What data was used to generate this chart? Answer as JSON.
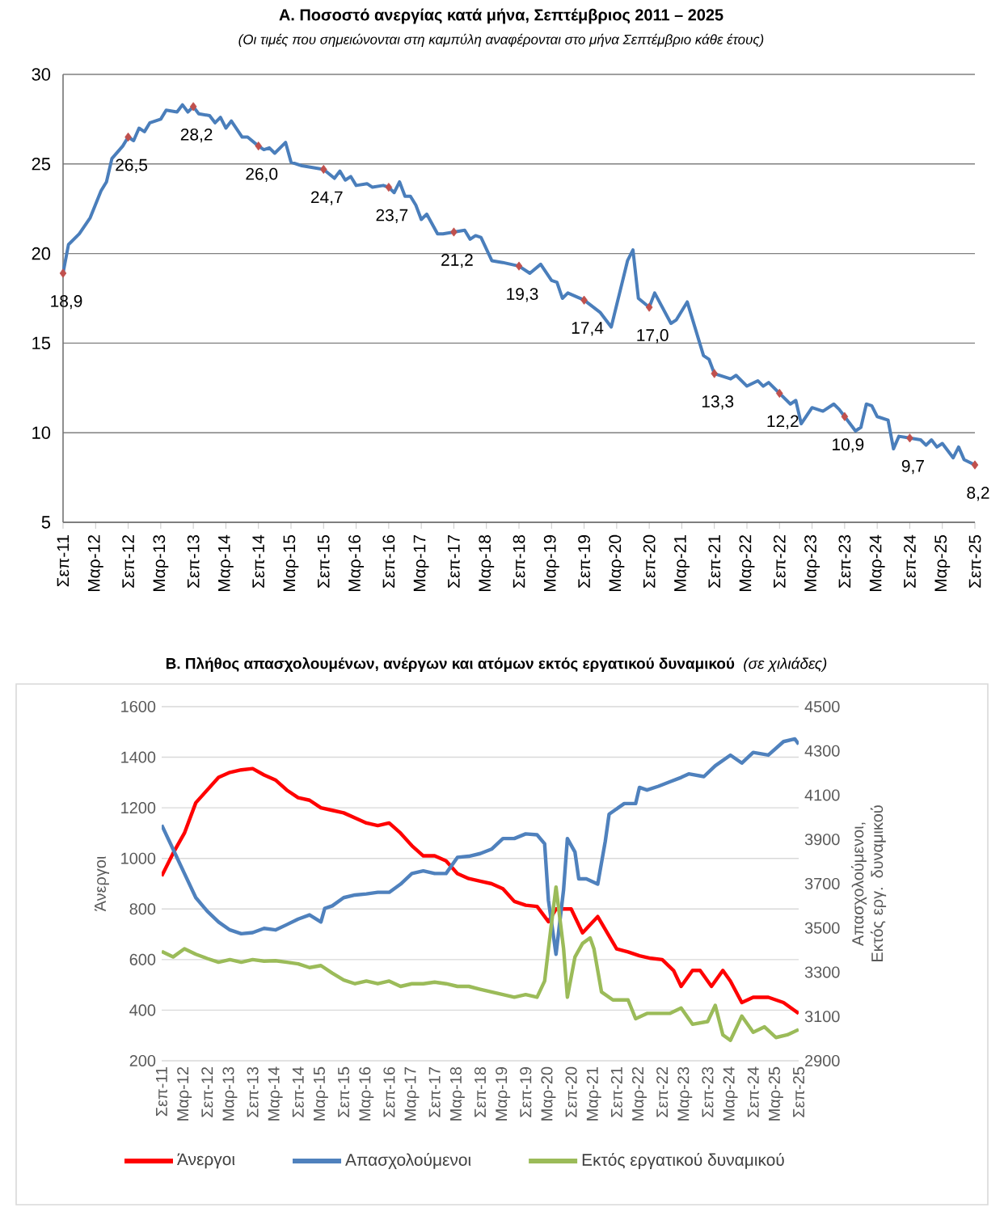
{
  "chart_data": [
    {
      "type": "line",
      "title": "Α. Ποσοστό ανεργίας κατά μήνα, Σεπτέμβριος 2011 – 2025",
      "subtitle": "(Οι τιμές που σημειώνονται στη καμπύλη αναφέρονται στο μήνα Σεπτέμβριο κάθε έτους)",
      "xlim": [
        "2011-09",
        "2025-09"
      ],
      "xticks": [
        {
          "value": "2011-09",
          "label": "Σεπ-11"
        },
        {
          "value": "2012-03",
          "label": "Μαρ-12"
        },
        {
          "value": "2012-09",
          "label": "Σεπ-12"
        },
        {
          "value": "2013-03",
          "label": "Μαρ-13"
        },
        {
          "value": "2013-09",
          "label": "Σεπ-13"
        },
        {
          "value": "2014-03",
          "label": "Μαρ-14"
        },
        {
          "value": "2014-09",
          "label": "Σεπ-14"
        },
        {
          "value": "2015-03",
          "label": "Μαρ-15"
        },
        {
          "value": "2015-09",
          "label": "Σεπ-15"
        },
        {
          "value": "2016-03",
          "label": "Μαρ-16"
        },
        {
          "value": "2016-09",
          "label": "Σεπ-16"
        },
        {
          "value": "2017-03",
          "label": "Μαρ-17"
        },
        {
          "value": "2017-09",
          "label": "Σεπ-17"
        },
        {
          "value": "2018-03",
          "label": "Μαρ-18"
        },
        {
          "value": "2018-09",
          "label": "Σεπ-18"
        },
        {
          "value": "2019-03",
          "label": "Μαρ-19"
        },
        {
          "value": "2019-09",
          "label": "Σεπ-19"
        },
        {
          "value": "2020-03",
          "label": "Μαρ-20"
        },
        {
          "value": "2020-09",
          "label": "Σεπ-20"
        },
        {
          "value": "2021-03",
          "label": "Μαρ-21"
        },
        {
          "value": "2021-09",
          "label": "Σεπ-21"
        },
        {
          "value": "2022-03",
          "label": "Μαρ-22"
        },
        {
          "value": "2022-09",
          "label": "Σεπ-22"
        },
        {
          "value": "2023-03",
          "label": "Μαρ-23"
        },
        {
          "value": "2023-09",
          "label": "Σεπ-23"
        },
        {
          "value": "2024-03",
          "label": "Μαρ-24"
        },
        {
          "value": "2024-09",
          "label": "Σεπ-24"
        },
        {
          "value": "2025-03",
          "label": "Μαρ-25"
        },
        {
          "value": "2025-09",
          "label": "Σεπ-25"
        }
      ],
      "ylim": [
        5,
        30
      ],
      "yticks": [
        5,
        10,
        15,
        20,
        25,
        30
      ],
      "grid": "y",
      "series": [
        {
          "color": "#4a7ebb",
          "x": [
            "2011-09",
            "2011-10",
            "2011-12",
            "2012-02",
            "2012-04",
            "2012-05",
            "2012-06",
            "2012-08",
            "2012-09",
            "2012-10",
            "2012-11",
            "2012-12",
            "2013-01",
            "2013-03",
            "2013-04",
            "2013-06",
            "2013-07",
            "2013-08",
            "2013-09",
            "2013-10",
            "2013-12",
            "2014-01",
            "2014-02",
            "2014-03",
            "2014-04",
            "2014-06",
            "2014-07",
            "2014-09",
            "2014-10",
            "2014-11",
            "2014-12",
            "2015-02",
            "2015-03",
            "2015-05",
            "2015-07",
            "2015-09",
            "2015-11",
            "2015-12",
            "2016-01",
            "2016-02",
            "2016-03",
            "2016-05",
            "2016-06",
            "2016-08",
            "2016-09",
            "2016-10",
            "2016-11",
            "2016-12",
            "2017-01",
            "2017-02",
            "2017-03",
            "2017-04",
            "2017-06",
            "2017-07",
            "2017-09",
            "2017-11",
            "2017-12",
            "2018-01",
            "2018-02",
            "2018-04",
            "2018-06",
            "2018-09",
            "2018-11",
            "2019-01",
            "2019-03",
            "2019-04",
            "2019-05",
            "2019-06",
            "2019-09",
            "2019-12",
            "2020-02",
            "2020-05",
            "2020-06",
            "2020-07",
            "2020-09",
            "2020-10",
            "2021-01",
            "2021-02",
            "2021-04",
            "2021-07",
            "2021-08",
            "2021-09",
            "2021-12",
            "2022-01",
            "2022-03",
            "2022-05",
            "2022-06",
            "2022-07",
            "2022-09",
            "2022-11",
            "2022-12",
            "2023-01",
            "2023-03",
            "2023-05",
            "2023-07",
            "2023-08",
            "2023-09",
            "2023-11",
            "2023-12",
            "2024-01",
            "2024-02",
            "2024-03",
            "2024-05",
            "2024-06",
            "2024-07",
            "2024-09",
            "2024-11",
            "2024-12",
            "2025-01",
            "2025-02",
            "2025-03",
            "2025-05",
            "2025-06",
            "2025-07",
            "2025-09"
          ],
          "values": [
            18.9,
            20.5,
            21.1,
            22.0,
            23.5,
            24.0,
            25.3,
            26.0,
            26.5,
            26.3,
            27.0,
            26.8,
            27.3,
            27.5,
            28.0,
            27.9,
            28.3,
            27.9,
            28.2,
            27.8,
            27.7,
            27.3,
            27.6,
            27.0,
            27.4,
            26.5,
            26.5,
            26.0,
            25.8,
            25.9,
            25.6,
            26.2,
            25.1,
            24.9,
            24.8,
            24.7,
            24.2,
            24.6,
            24.1,
            24.3,
            23.8,
            23.9,
            23.7,
            23.8,
            23.7,
            23.4,
            24.0,
            23.2,
            23.2,
            22.7,
            21.9,
            22.2,
            21.1,
            21.1,
            21.2,
            21.3,
            20.8,
            21.0,
            20.9,
            19.6,
            19.5,
            19.3,
            18.9,
            19.4,
            18.5,
            18.4,
            17.5,
            17.8,
            17.4,
            16.7,
            15.9,
            19.6,
            20.2,
            17.5,
            17.0,
            17.8,
            16.1,
            16.3,
            17.3,
            14.3,
            14.1,
            13.3,
            13.0,
            13.2,
            12.6,
            12.9,
            12.6,
            12.8,
            12.2,
            11.6,
            11.8,
            10.5,
            11.4,
            11.2,
            11.6,
            11.3,
            10.9,
            10.1,
            10.3,
            11.6,
            11.5,
            10.9,
            10.7,
            9.1,
            9.8,
            9.7,
            9.6,
            9.3,
            9.6,
            9.2,
            9.4,
            8.6,
            9.2,
            8.5,
            8.2
          ]
        },
        {
          "type": "scatter",
          "marker": "diamond",
          "color": "#c0504d",
          "x": [
            "2011-09",
            "2012-09",
            "2013-09",
            "2014-09",
            "2015-09",
            "2016-09",
            "2017-09",
            "2018-09",
            "2019-09",
            "2020-09",
            "2021-09",
            "2022-09",
            "2023-09",
            "2024-09",
            "2025-09"
          ],
          "values": [
            18.9,
            26.5,
            28.2,
            26.0,
            24.7,
            23.7,
            21.2,
            19.3,
            17.4,
            17.0,
            13.3,
            12.2,
            10.9,
            9.7,
            8.2
          ],
          "value_labels": [
            "18,9",
            "26,5",
            "28,2",
            "26,0",
            "24,7",
            "23,7",
            "21,2",
            "19,3",
            "17,4",
            "17,0",
            "13,3",
            "12,2",
            "10,9",
            "9,7",
            "8,2"
          ]
        }
      ]
    },
    {
      "type": "line",
      "title": "Β. Πλήθος απασχολουμένων, ανέργων και ατόμων εκτός εργατικού δυναμικού",
      "subtitle": "(σε χιλιάδες)",
      "ylabel": "Άνεργοι",
      "y2label": "Απασχολούμενοι, Εκτός εργ. δυναμικού",
      "xlim": [
        "2011-09",
        "2025-09"
      ],
      "xticks": [
        {
          "value": "2011-09",
          "label": "Σεπ-11"
        },
        {
          "value": "2012-03",
          "label": "Μαρ-12"
        },
        {
          "value": "2012-09",
          "label": "Σεπ-12"
        },
        {
          "value": "2013-03",
          "label": "Μαρ-13"
        },
        {
          "value": "2013-09",
          "label": "Σεπ-13"
        },
        {
          "value": "2014-03",
          "label": "Μαρ-14"
        },
        {
          "value": "2014-09",
          "label": "Σεπ-14"
        },
        {
          "value": "2015-03",
          "label": "Μαρ-15"
        },
        {
          "value": "2015-09",
          "label": "Σεπ-15"
        },
        {
          "value": "2016-03",
          "label": "Μαρ-16"
        },
        {
          "value": "2016-09",
          "label": "Σεπ-16"
        },
        {
          "value": "2017-03",
          "label": "Μαρ-17"
        },
        {
          "value": "2017-09",
          "label": "Σεπ-17"
        },
        {
          "value": "2018-03",
          "label": "Μαρ-18"
        },
        {
          "value": "2018-09",
          "label": "Σεπ-18"
        },
        {
          "value": "2019-03",
          "label": "Μαρ-19"
        },
        {
          "value": "2019-09",
          "label": "Σεπ-19"
        },
        {
          "value": "2020-03",
          "label": "Μαρ-20"
        },
        {
          "value": "2020-09",
          "label": "Σεπ-20"
        },
        {
          "value": "2021-03",
          "label": "Μαρ-21"
        },
        {
          "value": "2021-09",
          "label": "Σεπ-21"
        },
        {
          "value": "2022-03",
          "label": "Μαρ-22"
        },
        {
          "value": "2022-09",
          "label": "Σεπ-22"
        },
        {
          "value": "2023-03",
          "label": "Μαρ-23"
        },
        {
          "value": "2023-09",
          "label": "Σεπ-23"
        },
        {
          "value": "2024-03",
          "label": "Μαρ-24"
        },
        {
          "value": "2024-09",
          "label": "Σεπ-24"
        },
        {
          "value": "2025-03",
          "label": "Μαρ-25"
        },
        {
          "value": "2025-09",
          "label": "Σεπ-25"
        }
      ],
      "ylim": [
        200,
        1600
      ],
      "yticks": [
        200,
        400,
        600,
        800,
        1000,
        1200,
        1400,
        1600
      ],
      "y2lim": [
        2900,
        4500
      ],
      "y2ticks": [
        2900,
        3100,
        3300,
        3500,
        3700,
        3900,
        4100,
        4300,
        4500
      ],
      "grid": "y",
      "legend": "bottom",
      "series": [
        {
          "name": "Άνεργοι",
          "color": "#ff0000",
          "x": [
            "2011-09",
            "2011-12",
            "2012-03",
            "2012-06",
            "2012-09",
            "2012-12",
            "2013-03",
            "2013-06",
            "2013-09",
            "2013-12",
            "2014-03",
            "2014-06",
            "2014-09",
            "2014-12",
            "2015-03",
            "2015-06",
            "2015-09",
            "2015-12",
            "2016-03",
            "2016-06",
            "2016-09",
            "2016-12",
            "2017-03",
            "2017-06",
            "2017-09",
            "2017-12",
            "2018-03",
            "2018-06",
            "2018-09",
            "2018-12",
            "2019-03",
            "2019-06",
            "2019-09",
            "2019-12",
            "2020-03",
            "2020-05",
            "2020-09",
            "2020-12",
            "2021-04",
            "2021-09",
            "2021-12",
            "2022-03",
            "2022-06",
            "2022-09",
            "2022-12",
            "2023-02",
            "2023-05",
            "2023-07",
            "2023-10",
            "2024-01",
            "2024-03",
            "2024-06",
            "2024-09",
            "2025-01",
            "2025-05",
            "2025-09"
          ],
          "values": [
            930,
            1020,
            1100,
            1220,
            1270,
            1320,
            1340,
            1350,
            1355,
            1330,
            1310,
            1270,
            1240,
            1230,
            1200,
            1190,
            1180,
            1160,
            1140,
            1130,
            1140,
            1100,
            1050,
            1010,
            1010,
            990,
            940,
            920,
            910,
            900,
            880,
            830,
            815,
            810,
            750,
            800,
            800,
            706,
            770,
            642,
            630,
            615,
            605,
            600,
            557,
            494,
            557,
            557,
            494,
            557,
            515,
            430,
            451,
            451,
            430,
            387
          ]
        },
        {
          "name": "Απασχολούμενοι",
          "color": "#4f81bd",
          "axis": "y2",
          "x": [
            "2011-09",
            "2011-12",
            "2012-03",
            "2012-06",
            "2012-09",
            "2012-12",
            "2013-03",
            "2013-06",
            "2013-09",
            "2013-12",
            "2014-03",
            "2014-06",
            "2014-09",
            "2014-12",
            "2015-03",
            "2015-04",
            "2015-06",
            "2015-09",
            "2015-12",
            "2016-03",
            "2016-06",
            "2016-09",
            "2016-12",
            "2017-03",
            "2017-06",
            "2017-09",
            "2017-12",
            "2018-03",
            "2018-06",
            "2018-09",
            "2018-12",
            "2019-03",
            "2019-06",
            "2019-09",
            "2019-12",
            "2020-02",
            "2020-03",
            "2020-05",
            "2020-07",
            "2020-08",
            "2020-10",
            "2020-11",
            "2021-01",
            "2021-04",
            "2021-06",
            "2021-07",
            "2021-11",
            "2022-02",
            "2022-03",
            "2022-05",
            "2022-08",
            "2022-11",
            "2023-02",
            "2023-04",
            "2023-08",
            "2023-11",
            "2024-03",
            "2024-06",
            "2024-09",
            "2025-01",
            "2025-05",
            "2025-08",
            "2025-09"
          ],
          "values": [
            3965,
            3856,
            3746,
            3637,
            3576,
            3527,
            3491,
            3474,
            3479,
            3498,
            3491,
            3515,
            3540,
            3559,
            3527,
            3588,
            3600,
            3637,
            3649,
            3654,
            3661,
            3661,
            3698,
            3746,
            3758,
            3746,
            3746,
            3819,
            3824,
            3836,
            3856,
            3904,
            3904,
            3925,
            3921,
            3880,
            3625,
            3381,
            3673,
            3904,
            3843,
            3722,
            3722,
            3698,
            3892,
            4014,
            4062,
            4062,
            4135,
            4123,
            4140,
            4160,
            4180,
            4196,
            4184,
            4233,
            4281,
            4245,
            4293,
            4281,
            4342,
            4354,
            4330
          ]
        },
        {
          "name": "Εκτός εργατικού δυναμικού",
          "color": "#9bbb59",
          "axis": "y2",
          "x": [
            "2011-09",
            "2011-12",
            "2012-03",
            "2012-06",
            "2012-09",
            "2012-12",
            "2013-03",
            "2013-06",
            "2013-09",
            "2013-12",
            "2014-03",
            "2014-06",
            "2014-09",
            "2014-12",
            "2015-03",
            "2015-06",
            "2015-09",
            "2015-12",
            "2016-03",
            "2016-06",
            "2016-09",
            "2016-12",
            "2017-03",
            "2017-06",
            "2017-09",
            "2017-12",
            "2018-03",
            "2018-06",
            "2018-09",
            "2018-12",
            "2019-03",
            "2019-06",
            "2019-09",
            "2019-12",
            "2020-02",
            "2020-03",
            "2020-05",
            "2020-07",
            "2020-08",
            "2020-10",
            "2020-12",
            "2021-02",
            "2021-03",
            "2021-05",
            "2021-08",
            "2021-12",
            "2022-02",
            "2022-05",
            "2022-11",
            "2023-02",
            "2023-05",
            "2023-09",
            "2023-11",
            "2024-01",
            "2024-03",
            "2024-06",
            "2024-09",
            "2024-12",
            "2025-03",
            "2025-06",
            "2025-09"
          ],
          "values": [
            3394,
            3369,
            3406,
            3381,
            3362,
            3345,
            3357,
            3345,
            3357,
            3350,
            3352,
            3345,
            3338,
            3321,
            3330,
            3296,
            3265,
            3248,
            3260,
            3248,
            3260,
            3236,
            3248,
            3248,
            3255,
            3248,
            3236,
            3236,
            3223,
            3211,
            3199,
            3187,
            3199,
            3187,
            3260,
            3406,
            3685,
            3406,
            3187,
            3369,
            3430,
            3455,
            3406,
            3211,
            3175,
            3175,
            3090,
            3114,
            3114,
            3138,
            3065,
            3077,
            3150,
            3017,
            2992,
            3102,
            3029,
            3053,
            3005,
            3017,
            3041
          ]
        }
      ]
    }
  ]
}
